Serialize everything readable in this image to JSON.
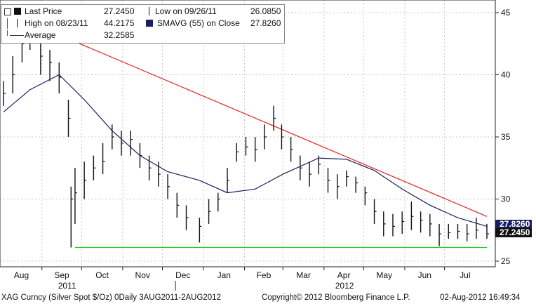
{
  "legend": {
    "last_price_label": "Last Price",
    "last_price_value": "27.2450",
    "low_label": "Low on 09/26/11",
    "low_value": "26.0850",
    "high_label": "High on 08/23/11",
    "high_value": "44.2175",
    "sma_label": "SMAVG (55) on Close",
    "sma_value": "27.8260",
    "average_label": "Average",
    "average_value": "32.2585"
  },
  "footer": {
    "ticker": "XAG Curncy (Silver Spot  $/Oz) 0Daily 3AUG2011-2AUG2012",
    "copyright": "Copyright© 2012 Bloomberg Finance L.P.",
    "timestamp": "02-Aug-2012 16:49:34"
  },
  "price_tags": {
    "sma": "27.8260",
    "last": "27.2450"
  },
  "colors": {
    "price_bars": "#111111",
    "sma_line": "#1a1f5c",
    "trend_line": "#e8201e",
    "support_line": "#22cc22",
    "grid": "#c8c8c8",
    "sma_tag_bg": "#1a1f5c",
    "last_tag_bg": "#111111"
  },
  "chart_data": {
    "type": "line",
    "title": "",
    "xlabel": "",
    "ylabel": "",
    "ylim": [
      25,
      46
    ],
    "yticks": [
      25,
      30,
      35,
      40,
      45
    ],
    "x_month_labels": [
      "Aug",
      "Sep",
      "Oct",
      "Nov",
      "Dec",
      "Jan",
      "Feb",
      "Mar",
      "Apr",
      "May",
      "Jun",
      "Jul"
    ],
    "x_year_labels": [
      "2011",
      "2012"
    ],
    "grid": true,
    "legend_position": "top-left",
    "series": [
      {
        "name": "Last Price",
        "style": "ohlc-bars",
        "x": [
          "2011-08-03",
          "2011-08-10",
          "2011-08-17",
          "2011-08-23",
          "2011-08-31",
          "2011-09-07",
          "2011-09-14",
          "2011-09-21",
          "2011-09-23",
          "2011-09-26",
          "2011-10-03",
          "2011-10-10",
          "2011-10-17",
          "2011-10-24",
          "2011-10-31",
          "2011-11-07",
          "2011-11-14",
          "2011-11-21",
          "2011-11-28",
          "2011-12-05",
          "2011-12-12",
          "2011-12-19",
          "2011-12-29",
          "2012-01-05",
          "2012-01-12",
          "2012-01-19",
          "2012-01-26",
          "2012-02-02",
          "2012-02-09",
          "2012-02-16",
          "2012-02-23",
          "2012-02-29",
          "2012-03-07",
          "2012-03-14",
          "2012-03-21",
          "2012-03-28",
          "2012-04-04",
          "2012-04-11",
          "2012-04-18",
          "2012-04-25",
          "2012-05-02",
          "2012-05-09",
          "2012-05-16",
          "2012-05-23",
          "2012-05-30",
          "2012-06-06",
          "2012-06-13",
          "2012-06-20",
          "2012-06-27",
          "2012-07-04",
          "2012-07-11",
          "2012-07-18",
          "2012-07-25",
          "2012-08-02"
        ],
        "close": [
          38.5,
          40.0,
          42.5,
          43.5,
          41.5,
          41.0,
          39.8,
          36.5,
          30.0,
          30.5,
          31.5,
          32.5,
          33.0,
          35.0,
          34.5,
          34.8,
          33.5,
          32.5,
          32.0,
          31.0,
          29.5,
          28.5,
          27.8,
          29.0,
          30.0,
          31.5,
          33.8,
          34.2,
          34.0,
          35.0,
          36.5,
          35.0,
          34.0,
          32.5,
          32.0,
          32.8,
          31.5,
          31.0,
          31.8,
          31.3,
          30.5,
          29.0,
          28.0,
          27.8,
          28.2,
          28.6,
          28.3,
          28.0,
          27.2,
          27.3,
          27.4,
          27.2,
          27.5,
          27.2
        ],
        "high": [
          39.5,
          41.5,
          44.0,
          44.2,
          43.0,
          42.0,
          41.0,
          38.0,
          31.0,
          32.5,
          33.0,
          33.5,
          34.5,
          36.0,
          35.5,
          35.5,
          34.5,
          33.5,
          33.0,
          32.0,
          30.5,
          29.5,
          28.5,
          30.0,
          30.5,
          32.5,
          34.5,
          35.0,
          35.0,
          36.0,
          37.5,
          36.0,
          35.0,
          33.5,
          33.0,
          33.5,
          32.5,
          32.0,
          32.3,
          31.8,
          31.0,
          30.0,
          29.0,
          28.8,
          29.0,
          29.8,
          29.0,
          28.8,
          28.0,
          28.0,
          28.0,
          28.0,
          28.5,
          28.0
        ],
        "low": [
          37.5,
          38.5,
          41.0,
          42.0,
          40.0,
          39.5,
          38.5,
          35.0,
          26.1,
          28.0,
          30.0,
          31.5,
          32.0,
          34.0,
          33.5,
          33.5,
          32.5,
          31.5,
          31.0,
          30.0,
          28.5,
          27.5,
          26.5,
          28.0,
          29.0,
          30.5,
          33.0,
          33.5,
          33.0,
          34.0,
          35.5,
          34.0,
          33.0,
          31.5,
          31.0,
          32.0,
          30.5,
          30.0,
          31.0,
          30.5,
          29.5,
          28.0,
          27.0,
          27.0,
          27.2,
          27.5,
          27.3,
          27.0,
          26.2,
          26.8,
          26.8,
          26.6,
          26.8,
          26.8
        ]
      },
      {
        "name": "SMAVG (55) on Close",
        "x": [
          "2011-08-03",
          "2011-08-23",
          "2011-09-14",
          "2011-10-03",
          "2011-10-24",
          "2011-11-14",
          "2011-12-05",
          "2011-12-29",
          "2012-01-19",
          "2012-02-09",
          "2012-03-01",
          "2012-03-28",
          "2012-04-18",
          "2012-05-09",
          "2012-05-30",
          "2012-06-20",
          "2012-07-11",
          "2012-08-02"
        ],
        "values": [
          37.0,
          38.8,
          40.0,
          38.0,
          35.5,
          33.5,
          32.2,
          31.5,
          30.5,
          30.8,
          32.0,
          33.3,
          33.2,
          32.3,
          30.8,
          29.5,
          28.5,
          27.8
        ]
      },
      {
        "name": "Trend line",
        "x": [
          "2011-08-23",
          "2012-08-02"
        ],
        "values": [
          44.2,
          28.6
        ]
      },
      {
        "name": "Support",
        "x": [
          "2011-09-26",
          "2012-08-02"
        ],
        "values": [
          26.1,
          26.1
        ]
      }
    ],
    "annotations": [
      {
        "label": "Low on 09/26/11",
        "value": 26.085
      },
      {
        "label": "High on 08/23/11",
        "value": 44.2175
      },
      {
        "label": "Average",
        "value": 32.2585
      }
    ]
  }
}
